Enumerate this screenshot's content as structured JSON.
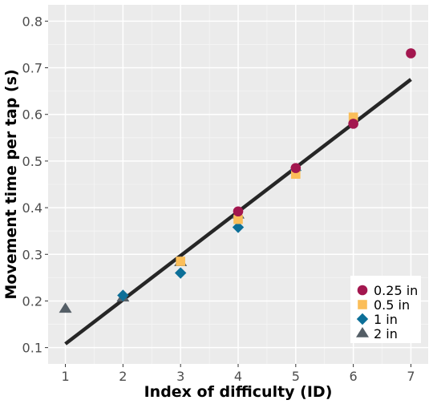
{
  "chart_data": {
    "type": "scatter",
    "title": "",
    "xlabel": "Index of difficulty (ID)",
    "ylabel": "Movement time per tap (s)",
    "xlim": [
      0.7,
      7.3
    ],
    "ylim": [
      0.065,
      0.835
    ],
    "x_ticks": [
      1,
      2,
      3,
      4,
      5,
      6,
      7
    ],
    "y_ticks": [
      0.1,
      0.2,
      0.3,
      0.4,
      0.5,
      0.6,
      0.7,
      0.8
    ],
    "y_tick_labels": [
      "0.1",
      "0.2",
      "0.3",
      "0.4",
      "0.5",
      "0.6",
      "0.7",
      "0.8"
    ],
    "grid": true,
    "legend_position": "bottom-right",
    "series": [
      {
        "name": "0.25 in",
        "shape": "circle",
        "color": "#a3174f",
        "points": [
          [
            4,
            0.392
          ],
          [
            5,
            0.485
          ],
          [
            6,
            0.58
          ],
          [
            7,
            0.731
          ]
        ]
      },
      {
        "name": "0.5 in",
        "shape": "square",
        "color": "#fbbe59",
        "points": [
          [
            3,
            0.285
          ],
          [
            4,
            0.375
          ],
          [
            5,
            0.472
          ],
          [
            6,
            0.594
          ]
        ]
      },
      {
        "name": "1 in",
        "shape": "diamond",
        "color": "#0c6f98",
        "points": [
          [
            2,
            0.212
          ],
          [
            3,
            0.26
          ],
          [
            4,
            0.358
          ],
          [
            5,
            0.48
          ]
        ]
      },
      {
        "name": "2 in",
        "shape": "triangle",
        "color": "#545e66",
        "points": [
          [
            1,
            0.183
          ],
          [
            2,
            0.207
          ],
          [
            3,
            0.283
          ],
          [
            4,
            0.385
          ]
        ]
      }
    ],
    "fit_line": {
      "color": "#262626",
      "points": [
        [
          1,
          0.108
        ],
        [
          7,
          0.675
        ]
      ]
    }
  }
}
